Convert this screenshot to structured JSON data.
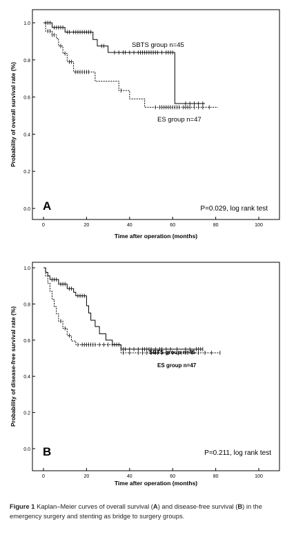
{
  "chart_data": [
    {
      "type": "line",
      "panel_label": "A",
      "xlabel": "Time after operation (months)",
      "ylabel": "Probability of overall survival rate (%)",
      "xlim": [
        0,
        100
      ],
      "ylim": [
        0.0,
        1.0
      ],
      "xticks": [
        "0",
        "20",
        "40",
        "60",
        "80",
        "100"
      ],
      "yticks": [
        "0.0",
        "0.2",
        "0.4",
        "0.6",
        "0.8",
        "1.0"
      ],
      "annotation": "P=0.029, log rank test",
      "grid": false,
      "series": [
        {
          "name": "SBTS group n=45",
          "style": "solid",
          "color": "#000000",
          "steps": [
            [
              0,
              1.0
            ],
            [
              4,
              0.975
            ],
            [
              10,
              0.95
            ],
            [
              23,
              0.91
            ],
            [
              25,
              0.875
            ],
            [
              30,
              0.84
            ],
            [
              61,
              0.565
            ],
            [
              75,
              0.565
            ]
          ],
          "censored": [
            1,
            2,
            3,
            5,
            6,
            7,
            8,
            9,
            11,
            12,
            14,
            15,
            16,
            17,
            18,
            19,
            20,
            21,
            22,
            27,
            28,
            33,
            35,
            37,
            38,
            40,
            42,
            44,
            45,
            46,
            47,
            48,
            49,
            50,
            51,
            52,
            53,
            55,
            57,
            58,
            59,
            60,
            66,
            68,
            70,
            72,
            74
          ]
        },
        {
          "name": "ES group n=47",
          "style": "dashed",
          "color": "#000000",
          "steps": [
            [
              0,
              1.0
            ],
            [
              1,
              0.955
            ],
            [
              4,
              0.935
            ],
            [
              6,
              0.915
            ],
            [
              7,
              0.875
            ],
            [
              9,
              0.835
            ],
            [
              11,
              0.79
            ],
            [
              14,
              0.735
            ],
            [
              24,
              0.685
            ],
            [
              35,
              0.635
            ],
            [
              40,
              0.59
            ],
            [
              47,
              0.545
            ],
            [
              81,
              0.545
            ]
          ],
          "censored": [
            2,
            3,
            4,
            5,
            8,
            10,
            12,
            13,
            15,
            16,
            17,
            18,
            19,
            20,
            21,
            36,
            52,
            54,
            55,
            56,
            57,
            58,
            59,
            60,
            61,
            62,
            63,
            65,
            66,
            67,
            68,
            70,
            72,
            74,
            77
          ]
        }
      ],
      "legend_labels": [
        "SBTS group n=45",
        "ES group n=47"
      ]
    },
    {
      "type": "line",
      "panel_label": "B",
      "xlabel": "Time after operation (months)",
      "ylabel": "Probability of disease-free survival rate (%)",
      "xlim": [
        0,
        100
      ],
      "ylim": [
        0.0,
        1.0
      ],
      "xticks": [
        "0",
        "20",
        "40",
        "60",
        "80",
        "100"
      ],
      "yticks": [
        "0.0",
        "0.2",
        "0.4",
        "0.6",
        "0.8",
        "1.0"
      ],
      "annotation": "P=0.211, log rank test",
      "grid": false,
      "series": [
        {
          "name": "SBTS group n=45",
          "style": "solid",
          "color": "#000000",
          "steps": [
            [
              0,
              1.0
            ],
            [
              1,
              0.975
            ],
            [
              2,
              0.955
            ],
            [
              3,
              0.935
            ],
            [
              7,
              0.91
            ],
            [
              11,
              0.885
            ],
            [
              14,
              0.865
            ],
            [
              15,
              0.845
            ],
            [
              20,
              0.79
            ],
            [
              21,
              0.75
            ],
            [
              22,
              0.71
            ],
            [
              24,
              0.675
            ],
            [
              26,
              0.635
            ],
            [
              29,
              0.6
            ],
            [
              32,
              0.575
            ],
            [
              36,
              0.55
            ],
            [
              74,
              0.55
            ]
          ],
          "censored": [
            4,
            5,
            6,
            8,
            9,
            10,
            12,
            13,
            16,
            17,
            18,
            19,
            34,
            35,
            37,
            38,
            40,
            42,
            44,
            46,
            47,
            48,
            49,
            50,
            52,
            54,
            55,
            57,
            59,
            62,
            66,
            68,
            71,
            72,
            73,
            74
          ]
        },
        {
          "name": "ES group n=47",
          "style": "dashed",
          "color": "#000000",
          "steps": [
            [
              0,
              1.0
            ],
            [
              1,
              0.955
            ],
            [
              2,
              0.915
            ],
            [
              3,
              0.87
            ],
            [
              4,
              0.825
            ],
            [
              5,
              0.785
            ],
            [
              6,
              0.745
            ],
            [
              7,
              0.705
            ],
            [
              9,
              0.665
            ],
            [
              11,
              0.625
            ],
            [
              13,
              0.595
            ],
            [
              15,
              0.575
            ],
            [
              36,
              0.53
            ],
            [
              82,
              0.53
            ]
          ],
          "censored": [
            8,
            10,
            12,
            16,
            18,
            19,
            20,
            21,
            22,
            23,
            24,
            26,
            28,
            30,
            32,
            33,
            37,
            40,
            44,
            46,
            48,
            50,
            52,
            53,
            55,
            57,
            58,
            60,
            62,
            64,
            66,
            67,
            69,
            72,
            75,
            78,
            82
          ]
        }
      ],
      "legend_labels": [
        "SBTS group n=45",
        "ES group n=47"
      ]
    }
  ],
  "caption": {
    "label": "Figure 1",
    "text_before_a": " Kaplan–Meier curves of overall survival (",
    "a": "A",
    "text_between": ") and disease-free survival (",
    "b": "B",
    "text_after": ") in the emergency surgery and stenting as bridge to surgery groups."
  }
}
